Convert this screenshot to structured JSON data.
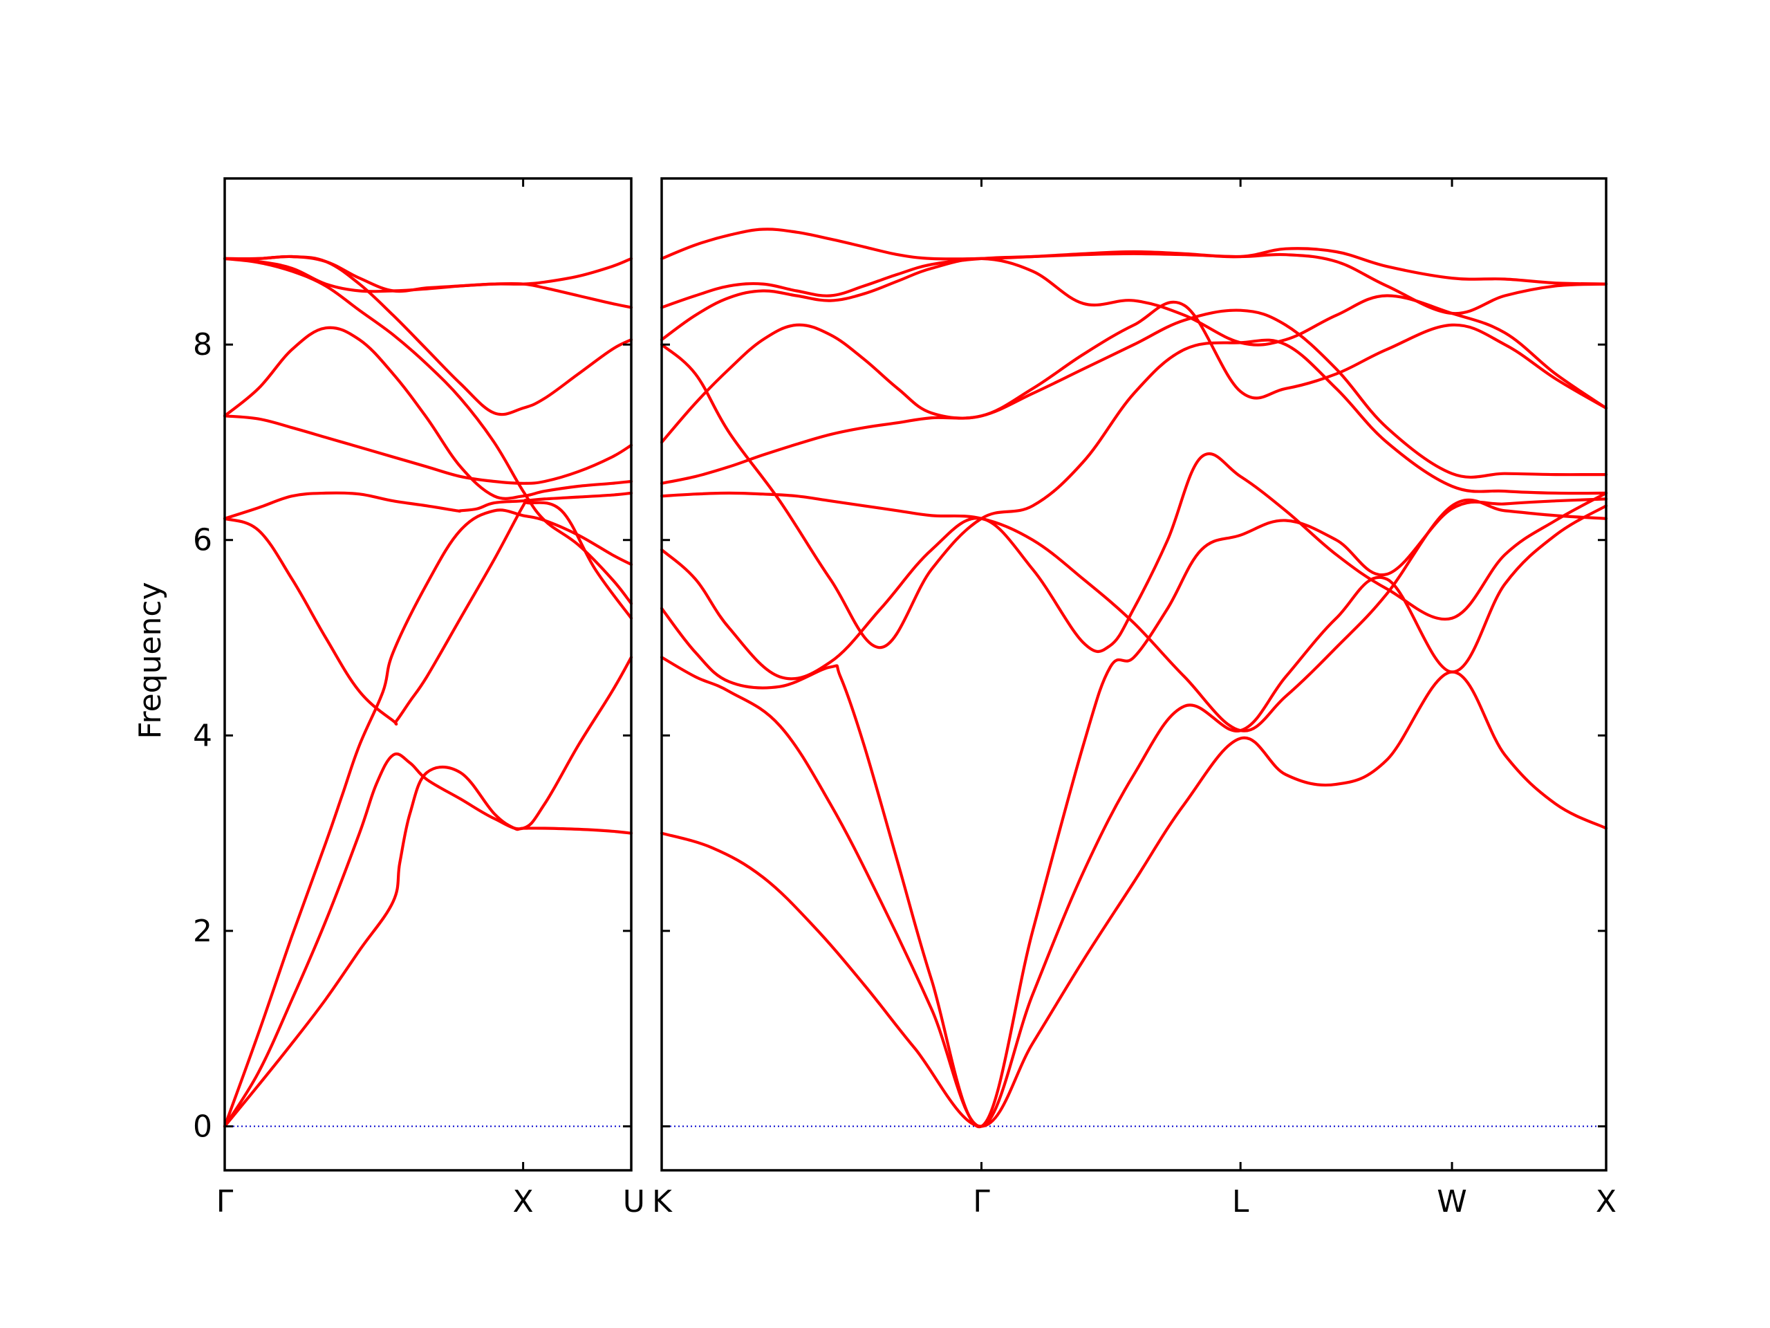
{
  "chart_data": {
    "type": "line",
    "title": "",
    "ylabel": "Frequency",
    "xlabel": "",
    "ylim": [
      -0.45,
      9.7
    ],
    "yticks": [
      0,
      2,
      4,
      6,
      8
    ],
    "grid": false,
    "colors": {
      "band": "#ff0000",
      "zero": "#0000cd",
      "frame": "#000000"
    },
    "panels": [
      {
        "name": "left",
        "xlim": [
          0,
          1.207
        ],
        "tick_labels": [
          {
            "x": 0,
            "label": "Γ"
          },
          {
            "x": 0.886,
            "label": "X"
          },
          {
            "x": 1.207,
            "label": "U"
          }
        ],
        "bands": [
          {
            "x": [
              0,
              0.1,
              0.2,
              0.3,
              0.4,
              0.5,
              0.52,
              0.55,
              0.6,
              0.7,
              0.8,
              0.86,
              0.886,
              0.95,
              1.05,
              1.15,
              1.207
            ],
            "y": [
              0,
              0.42,
              0.85,
              1.3,
              1.8,
              2.3,
              2.7,
              3.2,
              3.62,
              3.62,
              3.2,
              3.05,
              3.05,
              3.05,
              3.04,
              3.02,
              3.0
            ]
          },
          {
            "x": [
              0,
              0.1,
              0.2,
              0.3,
              0.4,
              0.45,
              0.5,
              0.55,
              0.6,
              0.7,
              0.8,
              0.886,
              0.95,
              1.05,
              1.15,
              1.207
            ],
            "y": [
              0,
              0.55,
              1.3,
              2.1,
              3.0,
              3.5,
              3.8,
              3.72,
              3.55,
              3.35,
              3.15,
              3.05,
              3.3,
              3.9,
              4.45,
              4.8
            ]
          },
          {
            "x": [
              0,
              0.1,
              0.2,
              0.3,
              0.4,
              0.5,
              0.51,
              0.55,
              0.6,
              0.7,
              0.8,
              0.886,
              0.9,
              1.0,
              1.1,
              1.207
            ],
            "y": [
              6.22,
              6.1,
              5.6,
              5.0,
              4.45,
              4.15,
              4.15,
              4.35,
              4.6,
              5.2,
              5.8,
              6.35,
              6.38,
              6.3,
              5.7,
              5.2
            ]
          },
          {
            "x": [
              0,
              0.1,
              0.2,
              0.3,
              0.35,
              0.4,
              0.47,
              0.5,
              0.6,
              0.7,
              0.8,
              0.886,
              0.95,
              1.05,
              1.15,
              1.207
            ],
            "y": [
              0,
              0.95,
              1.95,
              2.9,
              3.4,
              3.9,
              4.45,
              4.85,
              5.55,
              6.1,
              6.3,
              6.25,
              6.2,
              6.05,
              5.85,
              5.75
            ]
          },
          {
            "x": [
              0,
              0.1,
              0.2,
              0.3,
              0.4,
              0.5,
              0.6,
              0.69,
              0.7,
              0.75,
              0.8,
              0.886,
              0.95,
              1.05,
              1.15,
              1.207
            ],
            "y": [
              6.22,
              6.33,
              6.45,
              6.48,
              6.47,
              6.4,
              6.35,
              6.3,
              6.3,
              6.32,
              6.38,
              6.4,
              6.42,
              6.44,
              6.46,
              6.48
            ]
          },
          {
            "x": [
              0,
              0.1,
              0.2,
              0.3,
              0.4,
              0.5,
              0.6,
              0.7,
              0.8,
              0.886,
              0.95,
              1.05,
              1.15,
              1.207
            ],
            "y": [
              7.27,
              7.24,
              7.15,
              7.05,
              6.95,
              6.85,
              6.75,
              6.65,
              6.6,
              6.58,
              6.6,
              6.7,
              6.85,
              6.97
            ]
          },
          {
            "x": [
              0,
              0.1,
              0.2,
              0.3,
              0.4,
              0.5,
              0.6,
              0.7,
              0.8,
              0.886,
              0.95,
              1.05,
              1.15,
              1.207
            ],
            "y": [
              7.27,
              7.55,
              7.95,
              8.17,
              8.05,
              7.7,
              7.25,
              6.75,
              6.45,
              6.45,
              6.5,
              6.55,
              6.58,
              6.6
            ]
          },
          {
            "x": [
              0,
              0.1,
              0.2,
              0.3,
              0.4,
              0.5,
              0.6,
              0.7,
              0.8,
              0.886,
              0.95,
              1.05,
              1.15,
              1.207
            ],
            "y": [
              8.88,
              8.84,
              8.75,
              8.6,
              8.35,
              8.1,
              7.8,
              7.45,
              7.0,
              6.5,
              6.2,
              5.95,
              5.6,
              5.35
            ]
          },
          {
            "x": [
              0,
              0.1,
              0.2,
              0.3,
              0.4,
              0.5,
              0.6,
              0.7,
              0.8,
              0.886,
              0.95,
              1.05,
              1.15,
              1.207
            ],
            "y": [
              8.88,
              8.85,
              8.78,
              8.62,
              8.55,
              8.55,
              8.57,
              8.6,
              8.62,
              8.62,
              8.58,
              8.5,
              8.42,
              8.38
            ]
          },
          {
            "x": [
              0,
              0.1,
              0.2,
              0.3,
              0.4,
              0.5,
              0.6,
              0.7,
              0.8,
              0.886,
              0.95,
              1.05,
              1.15,
              1.207
            ],
            "y": [
              8.88,
              8.88,
              8.9,
              8.85,
              8.62,
              8.3,
              7.95,
              7.6,
              7.3,
              7.35,
              7.45,
              7.7,
              7.95,
              8.05
            ]
          },
          {
            "x": [
              0,
              0.1,
              0.2,
              0.3,
              0.4,
              0.5,
              0.6,
              0.7,
              0.8,
              0.886,
              0.95,
              1.05,
              1.15,
              1.207
            ],
            "y": [
              8.88,
              8.88,
              8.9,
              8.85,
              8.68,
              8.55,
              8.58,
              8.6,
              8.62,
              8.62,
              8.64,
              8.7,
              8.8,
              8.88
            ]
          }
        ],
        "zero_line": [
          0,
          1.207
        ]
      },
      {
        "name": "right",
        "xlim": [
          0,
          2.8
        ],
        "tick_labels": [
          {
            "x": 0,
            "label": "K"
          },
          {
            "x": 0.948,
            "label": "Γ"
          },
          {
            "x": 1.716,
            "label": "L"
          },
          {
            "x": 2.343,
            "label": "W"
          },
          {
            "x": 2.8,
            "label": "X"
          }
        ],
        "bands": [
          {
            "x": [
              0,
              0.15,
              0.3,
              0.45,
              0.6,
              0.75,
              0.948,
              1.1,
              1.25,
              1.4,
              1.55,
              1.716,
              1.85,
              2.0,
              2.15,
              2.343,
              2.5,
              2.65,
              2.8
            ],
            "y": [
              3.0,
              2.85,
              2.55,
              2.05,
              1.45,
              0.8,
              0,
              0.85,
              1.7,
              2.5,
              3.3,
              3.97,
              3.6,
              3.5,
              3.75,
              4.65,
              3.8,
              3.3,
              3.05
            ]
          },
          {
            "x": [
              0,
              0.1,
              0.2,
              0.35,
              0.5,
              0.65,
              0.8,
              0.948,
              1.1,
              1.25,
              1.4,
              1.55,
              1.716,
              1.85,
              2.0,
              2.15,
              2.343,
              2.5,
              2.65,
              2.8
            ],
            "y": [
              4.8,
              4.6,
              4.45,
              4.1,
              3.3,
              2.3,
              1.2,
              0,
              1.35,
              2.6,
              3.6,
              4.3,
              4.05,
              4.6,
              5.2,
              5.6,
              4.65,
              5.55,
              6.05,
              6.35
            ]
          },
          {
            "x": [
              0,
              0.1,
              0.2,
              0.35,
              0.5,
              0.53,
              0.6,
              0.7,
              0.8,
              0.948,
              1.1,
              1.25,
              1.33,
              1.4,
              1.5,
              1.6,
              1.716,
              1.85,
              2.0,
              2.15,
              2.343,
              2.5,
              2.65,
              2.8
            ],
            "y": [
              5.3,
              4.85,
              4.55,
              4.5,
              4.7,
              4.6,
              3.9,
              2.7,
              1.5,
              0,
              2.0,
              3.9,
              4.7,
              4.8,
              5.3,
              5.9,
              6.05,
              6.2,
              6.0,
              5.65,
              6.32,
              6.37,
              6.4,
              6.42
            ]
          },
          {
            "x": [
              0,
              0.1,
              0.2,
              0.35,
              0.5,
              0.65,
              0.8,
              0.948,
              1.1,
              1.25,
              1.33,
              1.4,
              1.5,
              1.6,
              1.716,
              1.85,
              2.0,
              2.15,
              2.343,
              2.5,
              2.65,
              2.8
            ],
            "y": [
              5.9,
              5.6,
              5.1,
              4.6,
              4.75,
              5.3,
              5.9,
              6.22,
              5.7,
              4.95,
              4.92,
              5.3,
              6.0,
              6.85,
              6.65,
              6.3,
              5.85,
              5.5,
              5.2,
              5.85,
              6.2,
              6.48
            ]
          },
          {
            "x": [
              0,
              0.1,
              0.2,
              0.3,
              0.4,
              0.5,
              0.6,
              0.7,
              0.8,
              0.948,
              1.1,
              1.25,
              1.4,
              1.55,
              1.716,
              1.85,
              2.0,
              2.15,
              2.343,
              2.5,
              2.65,
              2.8
            ],
            "y": [
              6.45,
              6.47,
              6.48,
              6.47,
              6.45,
              6.4,
              6.35,
              6.3,
              6.25,
              6.22,
              6.0,
              5.6,
              5.15,
              4.6,
              4.05,
              4.4,
              4.9,
              5.45,
              6.35,
              6.3,
              6.25,
              6.22
            ]
          },
          {
            "x": [
              0,
              0.1,
              0.2,
              0.3,
              0.4,
              0.5,
              0.6,
              0.7,
              0.8,
              0.948,
              1.1,
              1.25,
              1.4,
              1.55,
              1.716,
              1.85,
              2.0,
              2.15,
              2.343,
              2.5,
              2.65,
              2.8
            ],
            "y": [
              6.58,
              6.65,
              6.75,
              6.87,
              6.98,
              7.08,
              7.15,
              7.2,
              7.25,
              7.27,
              7.5,
              7.75,
              8.0,
              8.25,
              8.35,
              8.2,
              7.75,
              7.15,
              6.68,
              6.68,
              6.67,
              6.67
            ]
          },
          {
            "x": [
              0,
              0.1,
              0.2,
              0.3,
              0.4,
              0.5,
              0.6,
              0.7,
              0.8,
              0.948,
              1.1,
              1.25,
              1.4,
              1.55,
              1.716,
              1.85,
              2.0,
              2.15,
              2.343,
              2.5,
              2.65,
              2.8
            ],
            "y": [
              7.0,
              7.4,
              7.75,
              8.05,
              8.2,
              8.1,
              7.85,
              7.55,
              7.3,
              7.27,
              7.55,
              7.9,
              8.2,
              8.4,
              7.52,
              7.55,
              7.7,
              7.95,
              8.2,
              8.0,
              7.65,
              7.35
            ]
          },
          {
            "x": [
              0,
              0.1,
              0.2,
              0.35,
              0.5,
              0.65,
              0.8,
              0.948,
              1.1,
              1.25,
              1.4,
              1.55,
              1.716,
              1.85,
              2.0,
              2.15,
              2.343,
              2.5,
              2.65,
              2.8
            ],
            "y": [
              8.0,
              7.7,
              7.1,
              6.4,
              5.6,
              4.9,
              5.7,
              6.22,
              6.35,
              6.8,
              7.5,
              7.95,
              8.02,
              8.0,
              7.55,
              7.0,
              6.55,
              6.5,
              6.48,
              6.48
            ]
          },
          {
            "x": [
              0,
              0.1,
              0.2,
              0.3,
              0.4,
              0.5,
              0.6,
              0.7,
              0.8,
              0.948,
              1.1,
              1.25,
              1.4,
              1.55,
              1.716,
              1.85,
              2.0,
              2.15,
              2.343,
              2.5,
              2.65,
              2.8
            ],
            "y": [
              8.05,
              8.3,
              8.48,
              8.55,
              8.5,
              8.45,
              8.52,
              8.65,
              8.78,
              8.88,
              8.75,
              8.42,
              8.45,
              8.3,
              8.02,
              8.05,
              8.3,
              8.5,
              8.32,
              8.12,
              7.7,
              7.35
            ]
          },
          {
            "x": [
              0,
              0.1,
              0.2,
              0.3,
              0.4,
              0.5,
              0.6,
              0.7,
              0.8,
              0.948,
              1.1,
              1.25,
              1.4,
              1.55,
              1.716,
              1.85,
              2.0,
              2.15,
              2.343,
              2.5,
              2.65,
              2.8
            ],
            "y": [
              8.38,
              8.5,
              8.6,
              8.62,
              8.55,
              8.5,
              8.6,
              8.72,
              8.82,
              8.88,
              8.9,
              8.92,
              8.93,
              8.92,
              8.9,
              8.92,
              8.85,
              8.6,
              8.32,
              8.5,
              8.6,
              8.62
            ]
          },
          {
            "x": [
              0,
              0.1,
              0.2,
              0.3,
              0.4,
              0.5,
              0.6,
              0.7,
              0.8,
              0.948,
              1.1,
              1.25,
              1.4,
              1.55,
              1.716,
              1.85,
              2.0,
              2.15,
              2.343,
              2.5,
              2.65,
              2.8
            ],
            "y": [
              8.88,
              9.02,
              9.12,
              9.18,
              9.15,
              9.08,
              9.0,
              8.92,
              8.88,
              8.88,
              8.9,
              8.93,
              8.95,
              8.93,
              8.9,
              8.98,
              8.95,
              8.8,
              8.68,
              8.67,
              8.63,
              8.62
            ]
          }
        ],
        "zero_line": [
          0,
          2.8
        ]
      }
    ]
  }
}
